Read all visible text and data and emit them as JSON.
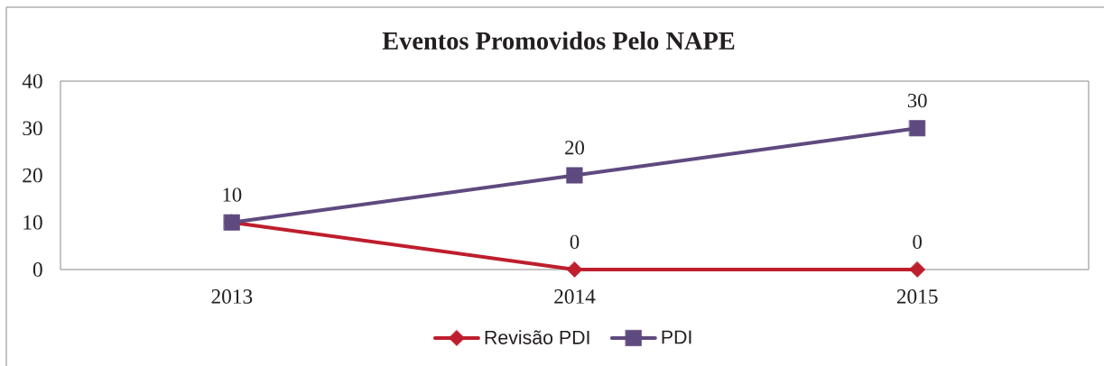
{
  "chart_data": {
    "type": "line",
    "title": "Eventos Promovidos Pelo NAPE",
    "categories": [
      "2013",
      "2014",
      "2015"
    ],
    "series": [
      {
        "name": "Revisão PDI",
        "color": "#be1e2d",
        "values": [
          10,
          0,
          0
        ],
        "marker": "diamond",
        "value_labels": [
          null,
          "0",
          "0"
        ]
      },
      {
        "name": "PDI",
        "color": "#5f4a7f",
        "values": [
          10,
          20,
          30
        ],
        "marker": "square",
        "value_labels": [
          "10",
          "20",
          "30"
        ]
      }
    ],
    "ylim": [
      0,
      40
    ],
    "yticks": [
      0,
      10,
      20,
      30,
      40
    ],
    "legend": "bottom",
    "line_style": "solid"
  }
}
